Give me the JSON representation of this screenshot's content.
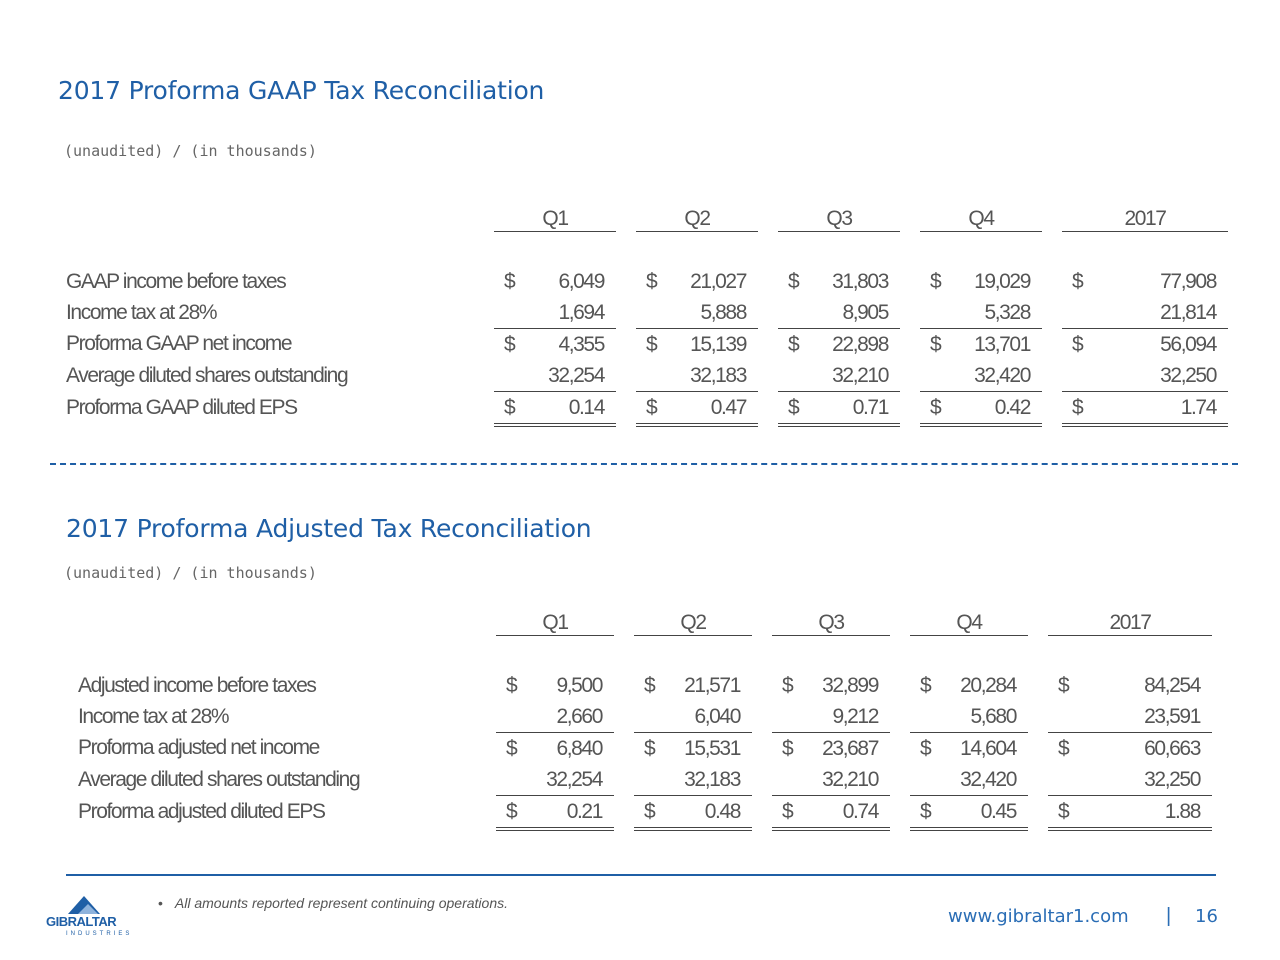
{
  "gaap": {
    "title": "2017 Proforma GAAP Tax Reconciliation",
    "subtitle": "(unaudited) / (in thousands)",
    "headers": [
      "Q1",
      "Q2",
      "Q3",
      "Q4",
      "2017"
    ],
    "currency": "$",
    "rows": [
      {
        "label": "GAAP income before taxes",
        "dollar": true,
        "values": [
          "6,049",
          "21,027",
          "31,803",
          "19,029",
          "77,908"
        ]
      },
      {
        "label": "Income tax at 28%",
        "dollar": false,
        "values": [
          "1,694",
          "5,888",
          "8,905",
          "5,328",
          "21,814"
        ]
      },
      {
        "label": "Proforma GAAP net income",
        "dollar": true,
        "values": [
          "4,355",
          "15,139",
          "22,898",
          "13,701",
          "56,094"
        ]
      },
      {
        "label": "Average diluted shares outstanding",
        "dollar": false,
        "values": [
          "32,254",
          "32,183",
          "32,210",
          "32,420",
          "32,250"
        ]
      },
      {
        "label": "Proforma GAAP diluted EPS",
        "dollar": true,
        "values": [
          "0.14",
          "0.47",
          "0.71",
          "0.42",
          "1.74"
        ]
      }
    ]
  },
  "adjusted": {
    "title": "2017 Proforma Adjusted Tax Reconciliation",
    "subtitle": "(unaudited) / (in thousands)",
    "headers": [
      "Q1",
      "Q2",
      "Q3",
      "Q4",
      "2017"
    ],
    "currency": "$",
    "rows": [
      {
        "label": "Adjusted income before taxes",
        "dollar": true,
        "values": [
          "9,500",
          "21,571",
          "32,899",
          "20,284",
          "84,254"
        ]
      },
      {
        "label": "Income tax at 28%",
        "dollar": false,
        "values": [
          "2,660",
          "6,040",
          "9,212",
          "5,680",
          "23,591"
        ]
      },
      {
        "label": "Proforma adjusted net income",
        "dollar": true,
        "values": [
          "6,840",
          "15,531",
          "23,687",
          "14,604",
          "60,663"
        ]
      },
      {
        "label": "Average diluted shares outstanding",
        "dollar": false,
        "values": [
          "32,254",
          "32,183",
          "32,210",
          "32,420",
          "32,250"
        ]
      },
      {
        "label": "Proforma adjusted diluted EPS",
        "dollar": true,
        "values": [
          "0.21",
          "0.48",
          "0.74",
          "0.45",
          "1.88"
        ]
      }
    ]
  },
  "footer": {
    "bullet": "•",
    "note": "All amounts reported represent continuing operations.",
    "logo_name": "GIBRALTAR",
    "logo_sub": "INDUSTRIES",
    "website": "www.gibraltar1.com",
    "separator": "|",
    "page_number": "16",
    "brand_color": "#1f5fa6"
  }
}
